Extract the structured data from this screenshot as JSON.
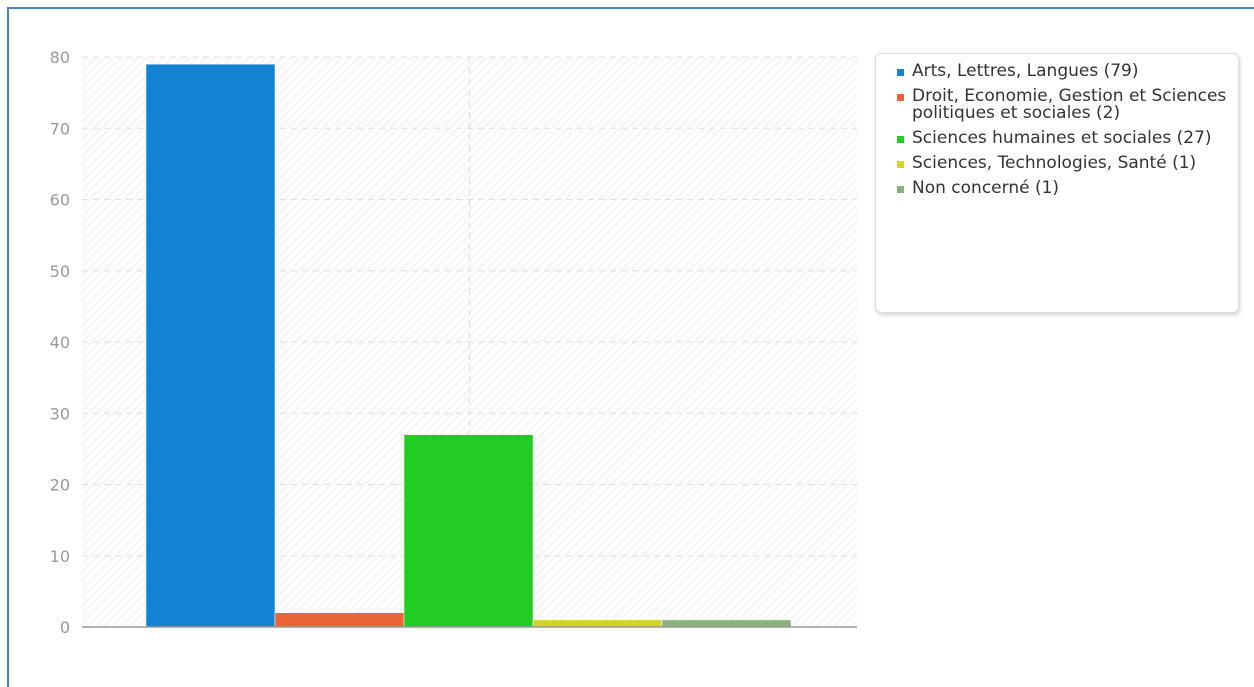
{
  "chart_data": {
    "type": "bar",
    "title": "",
    "xlabel": "",
    "ylabel": "",
    "ylim": [
      0,
      80
    ],
    "yticks": [
      0,
      10,
      20,
      30,
      40,
      50,
      60,
      70,
      80
    ],
    "grid": true,
    "legend_position": "right",
    "series": [
      {
        "name": "Arts, Lettres, Langues (79)",
        "value": 79,
        "color": "#1382d0"
      },
      {
        "name": "Droit, Economie, Gestion et Sciences politiques et sociales (2)",
        "value": 2,
        "color": "#ea6437"
      },
      {
        "name": "Sciences humaines et sociales (27)",
        "value": 27,
        "color": "#22cc22"
      },
      {
        "name": "Sciences, Technologies, Santé (1)",
        "value": 1,
        "color": "#d3d42a"
      },
      {
        "name": "Non concerné (1)",
        "value": 1,
        "color": "#89b17c"
      }
    ]
  }
}
